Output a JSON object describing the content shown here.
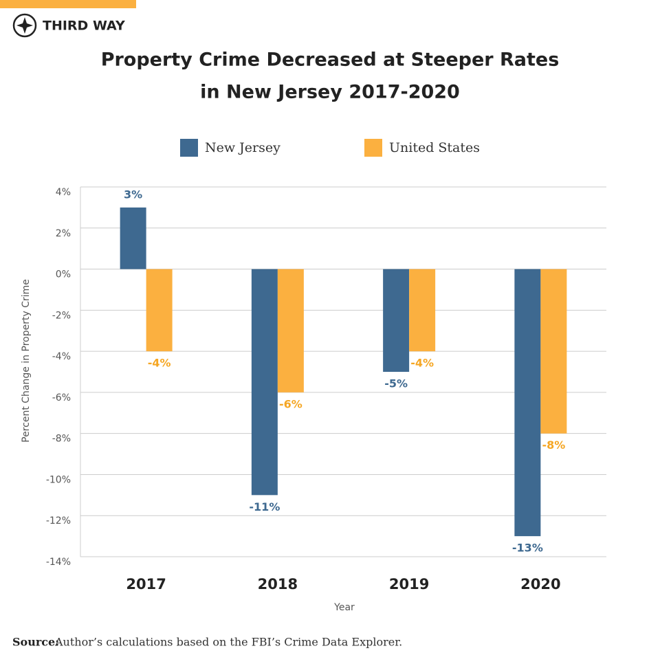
{
  "brand": "THIRD WAY",
  "chart_data": {
    "type": "bar",
    "title": [
      "Property Crime Decreased at Steeper Rates",
      "in New Jersey 2017-2020"
    ],
    "categories": [
      "2017",
      "2018",
      "2019",
      "2020"
    ],
    "series": [
      {
        "name": "New Jersey",
        "color": "#3e6990",
        "values": [
          3,
          -11,
          -5,
          -13
        ],
        "value_labels": [
          "3%",
          "-11%",
          "-5%",
          "-13%"
        ]
      },
      {
        "name": "United States",
        "color": "#fbb040",
        "values": [
          -4,
          -6,
          -4,
          -8
        ],
        "value_labels": [
          "-4%",
          "-6%",
          "-4%",
          "-8%"
        ]
      }
    ],
    "ylim": [
      -14,
      4
    ],
    "yticks": [
      {
        "value": 4,
        "label": "4%"
      },
      {
        "value": 2,
        "label": "2%"
      },
      {
        "value": 0,
        "label": "0%"
      },
      {
        "value": -2,
        "label": "-2%"
      },
      {
        "value": -4,
        "label": "-4%"
      },
      {
        "value": -6,
        "label": "-6%"
      },
      {
        "value": -8,
        "label": "-8%"
      },
      {
        "value": -10,
        "label": "-10%"
      },
      {
        "value": -12,
        "label": "-12%"
      },
      {
        "value": -14,
        "label": "-14%"
      }
    ],
    "xlabel": "Year",
    "ylabel": "Percent Change in Property Crime",
    "grid": true
  },
  "source": {
    "label": "Source:",
    "text": "Author’s calculations based on the FBI’s Crime Data Explorer."
  }
}
